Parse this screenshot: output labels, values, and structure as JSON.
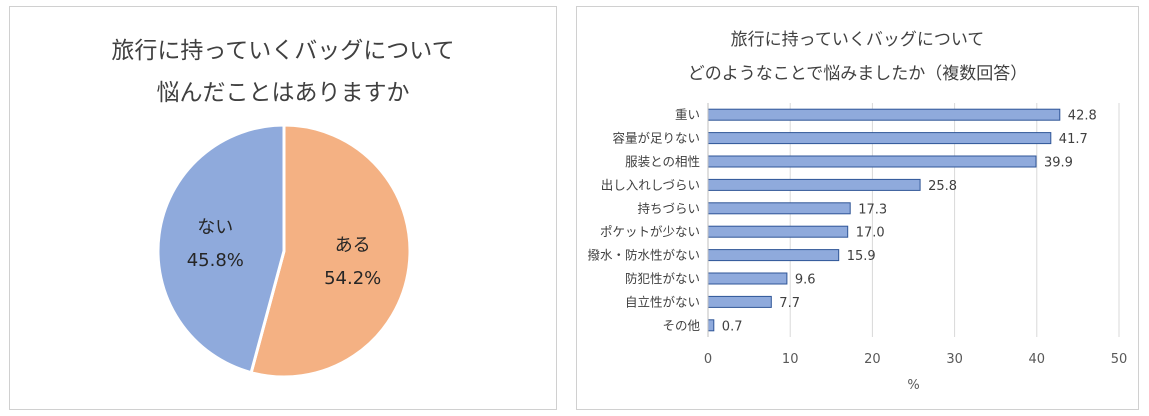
{
  "chart_data": [
    {
      "type": "pie",
      "title_lines": [
        "旅行に持っていくバッグについて",
        "悩んだことはありますか"
      ],
      "slices": [
        {
          "label": "ある",
          "value": 54.2,
          "value_label": "54.2%",
          "color": "#F4B183"
        },
        {
          "label": "ない",
          "value": 45.8,
          "value_label": "45.8%",
          "color": "#8FAADC"
        }
      ]
    },
    {
      "type": "bar",
      "orientation": "horizontal",
      "title_lines": [
        "旅行に持っていくバッグについて",
        "どのようなことで悩みましたか（複数回答）"
      ],
      "categories": [
        "重い",
        "容量が足りない",
        "服装との相性",
        "出し入れしづらい",
        "持ちづらい",
        "ポケットが少ない",
        "撥水・防水性がない",
        "防犯性がない",
        "自立性がない",
        "その他"
      ],
      "values": [
        42.8,
        41.7,
        39.9,
        25.8,
        17.3,
        17.0,
        15.9,
        9.6,
        7.7,
        0.7
      ],
      "value_labels": [
        "42.8",
        "41.7",
        "39.9",
        "25.8",
        "17.3",
        "17.0",
        "15.9",
        "9.6",
        "7.7",
        "0.7"
      ],
      "xlabel": "%",
      "xlim": [
        0,
        50
      ],
      "xticks": [
        "0",
        "10",
        "20",
        "30",
        "40",
        "50"
      ],
      "grid": true,
      "bar_color": "#8FAADC",
      "bar_edge_color": "#2F5597"
    }
  ]
}
